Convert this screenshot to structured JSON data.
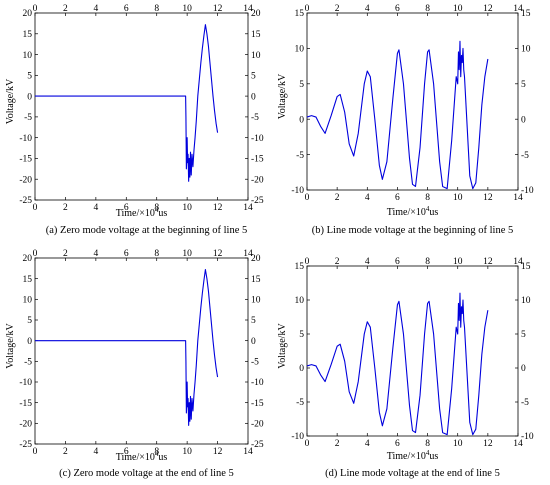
{
  "figure": {
    "captions": [
      "(a) Zero mode voltage at the beginning of line 5",
      "(b) Line mode voltage at the beginning of line 5",
      "(c) Zero mode voltage at the end of line 5",
      "(d)  Line mode voltage at the end of line 5"
    ]
  },
  "chart_data": [
    {
      "type": "line",
      "title": "(a) Zero mode voltage at the beginning of line 5",
      "xlabel_prefix": "Time/×10",
      "xlabel_exp": "4",
      "xlabel_suffix": "us",
      "ylabel": "Voltage/kV",
      "xlim": [
        0,
        14
      ],
      "ylim": [
        -25,
        20
      ],
      "xticks": [
        0,
        2,
        4,
        6,
        8,
        10,
        12,
        14
      ],
      "yticks": [
        -25,
        -20,
        -15,
        -10,
        -5,
        0,
        5,
        10,
        15,
        20
      ],
      "color": "#0000dd",
      "series": [
        {
          "x": [
            0,
            9.9,
            9.92,
            9.95,
            9.98,
            10.0,
            10.03,
            10.06,
            10.1,
            10.14,
            10.18,
            10.22,
            10.27,
            10.32,
            10.38,
            10.45,
            10.52,
            10.6,
            10.7,
            10.8,
            10.9,
            11.0,
            11.1,
            11.2,
            11.3,
            11.4,
            11.5,
            11.6,
            11.7,
            11.8,
            11.9,
            12.0
          ],
          "y": [
            0,
            0,
            -5,
            -17.5,
            -15,
            -10,
            -16,
            -14,
            -20.5,
            -15,
            -19.5,
            -13.5,
            -19,
            -14,
            -17,
            -13,
            -10,
            -6,
            0,
            4,
            8,
            11.5,
            14.5,
            17.2,
            15,
            12,
            8,
            4,
            0,
            -3.5,
            -6.5,
            -8.8
          ]
        }
      ]
    },
    {
      "type": "line",
      "title": "(b) Line mode voltage at the beginning of line 5",
      "xlabel_prefix": "Time/×10",
      "xlabel_exp": "4",
      "xlabel_suffix": "us",
      "ylabel": "Voltage/kV",
      "xlim": [
        0,
        14
      ],
      "ylim": [
        -10,
        15
      ],
      "xticks": [
        0,
        2,
        4,
        6,
        8,
        10,
        12,
        14
      ],
      "yticks": [
        -10,
        -5,
        0,
        5,
        10,
        15
      ],
      "color": "#0000dd",
      "series": [
        {
          "x": [
            0,
            0.3,
            0.6,
            0.9,
            1.2,
            1.6,
            2.0,
            2.2,
            2.5,
            2.8,
            3.1,
            3.4,
            3.8,
            4.0,
            4.2,
            4.5,
            4.8,
            5.0,
            5.3,
            5.7,
            6.0,
            6.1,
            6.4,
            6.8,
            7.0,
            7.2,
            7.5,
            7.8,
            8.0,
            8.1,
            8.4,
            8.8,
            9.0,
            9.3,
            9.6,
            9.8,
            9.9,
            10.0,
            10.05,
            10.1,
            10.15,
            10.2,
            10.25,
            10.3,
            10.35,
            10.4,
            10.45,
            10.6,
            10.8,
            11.0,
            11.2,
            11.4,
            11.6,
            11.8,
            12.0
          ],
          "y": [
            0.3,
            0.5,
            0.3,
            -1,
            -2,
            0.5,
            3.2,
            3.5,
            1,
            -3.5,
            -5.2,
            -2,
            5,
            6.8,
            6,
            0,
            -6.5,
            -8.5,
            -6,
            3,
            9.3,
            9.8,
            5,
            -5.5,
            -9.2,
            -9.5,
            -4,
            5,
            9.5,
            9.8,
            5,
            -6,
            -9.5,
            -9.8,
            -3,
            3,
            6,
            5,
            9.5,
            7,
            11,
            6,
            9,
            8,
            10,
            7,
            6,
            0,
            -8,
            -9.8,
            -9,
            -4,
            2,
            6,
            8.5
          ]
        }
      ]
    },
    {
      "type": "line",
      "title": "(c) Zero mode voltage at the end of line 5",
      "xlabel_prefix": "Time/×10",
      "xlabel_exp": "4",
      "xlabel_suffix": "us",
      "ylabel": "Voltage/kV",
      "xlim": [
        0,
        14
      ],
      "ylim": [
        -25,
        20
      ],
      "xticks": [
        0,
        2,
        4,
        6,
        8,
        10,
        12,
        14
      ],
      "yticks": [
        -25,
        -20,
        -15,
        -10,
        -5,
        0,
        5,
        10,
        15,
        20
      ],
      "color": "#0000dd",
      "series": [
        {
          "x": [
            0,
            9.9,
            9.92,
            9.95,
            9.98,
            10.0,
            10.03,
            10.06,
            10.1,
            10.14,
            10.18,
            10.22,
            10.27,
            10.32,
            10.38,
            10.45,
            10.52,
            10.6,
            10.7,
            10.8,
            10.9,
            11.0,
            11.1,
            11.2,
            11.3,
            11.4,
            11.5,
            11.6,
            11.7,
            11.8,
            11.9,
            12.0
          ],
          "y": [
            0,
            0,
            -5,
            -17.5,
            -15,
            -10,
            -16,
            -14,
            -20.5,
            -15,
            -19.5,
            -13.5,
            -19,
            -14,
            -17,
            -13,
            -10,
            -6,
            0,
            4,
            8,
            11.5,
            14.5,
            17.2,
            15,
            12,
            8,
            4,
            0,
            -3.5,
            -6.5,
            -8.8
          ]
        }
      ]
    },
    {
      "type": "line",
      "title": "(d)  Line mode voltage at the end of line 5",
      "xlabel_prefix": "Time/×10",
      "xlabel_exp": "4",
      "xlabel_suffix": "us",
      "ylabel": "Voltage/kV",
      "xlim": [
        0,
        14
      ],
      "ylim": [
        -10,
        15
      ],
      "xticks": [
        0,
        2,
        4,
        6,
        8,
        10,
        12,
        14
      ],
      "yticks": [
        -10,
        -5,
        0,
        5,
        10,
        15
      ],
      "color": "#0000dd",
      "series": [
        {
          "x": [
            0,
            0.3,
            0.6,
            0.9,
            1.2,
            1.6,
            2.0,
            2.2,
            2.5,
            2.8,
            3.1,
            3.4,
            3.8,
            4.0,
            4.2,
            4.5,
            4.8,
            5.0,
            5.3,
            5.7,
            6.0,
            6.1,
            6.4,
            6.8,
            7.0,
            7.2,
            7.5,
            7.8,
            8.0,
            8.1,
            8.4,
            8.8,
            9.0,
            9.3,
            9.6,
            9.8,
            9.9,
            10.0,
            10.05,
            10.1,
            10.15,
            10.2,
            10.25,
            10.3,
            10.35,
            10.4,
            10.45,
            10.6,
            10.8,
            11.0,
            11.2,
            11.4,
            11.6,
            11.8,
            12.0
          ],
          "y": [
            0.3,
            0.5,
            0.3,
            -1,
            -2,
            0.5,
            3.2,
            3.5,
            1,
            -3.5,
            -5.2,
            -2,
            5,
            6.8,
            6,
            0,
            -6.5,
            -8.5,
            -6,
            3,
            9.3,
            9.8,
            5,
            -5.5,
            -9.2,
            -9.5,
            -4,
            5,
            9.5,
            9.8,
            5,
            -6,
            -9.5,
            -9.8,
            -3,
            3,
            6,
            5,
            9.5,
            7,
            11,
            6,
            9,
            8,
            10,
            7,
            6,
            0,
            -8,
            -9.8,
            -9,
            -4,
            2,
            6,
            8.5
          ]
        }
      ]
    }
  ]
}
